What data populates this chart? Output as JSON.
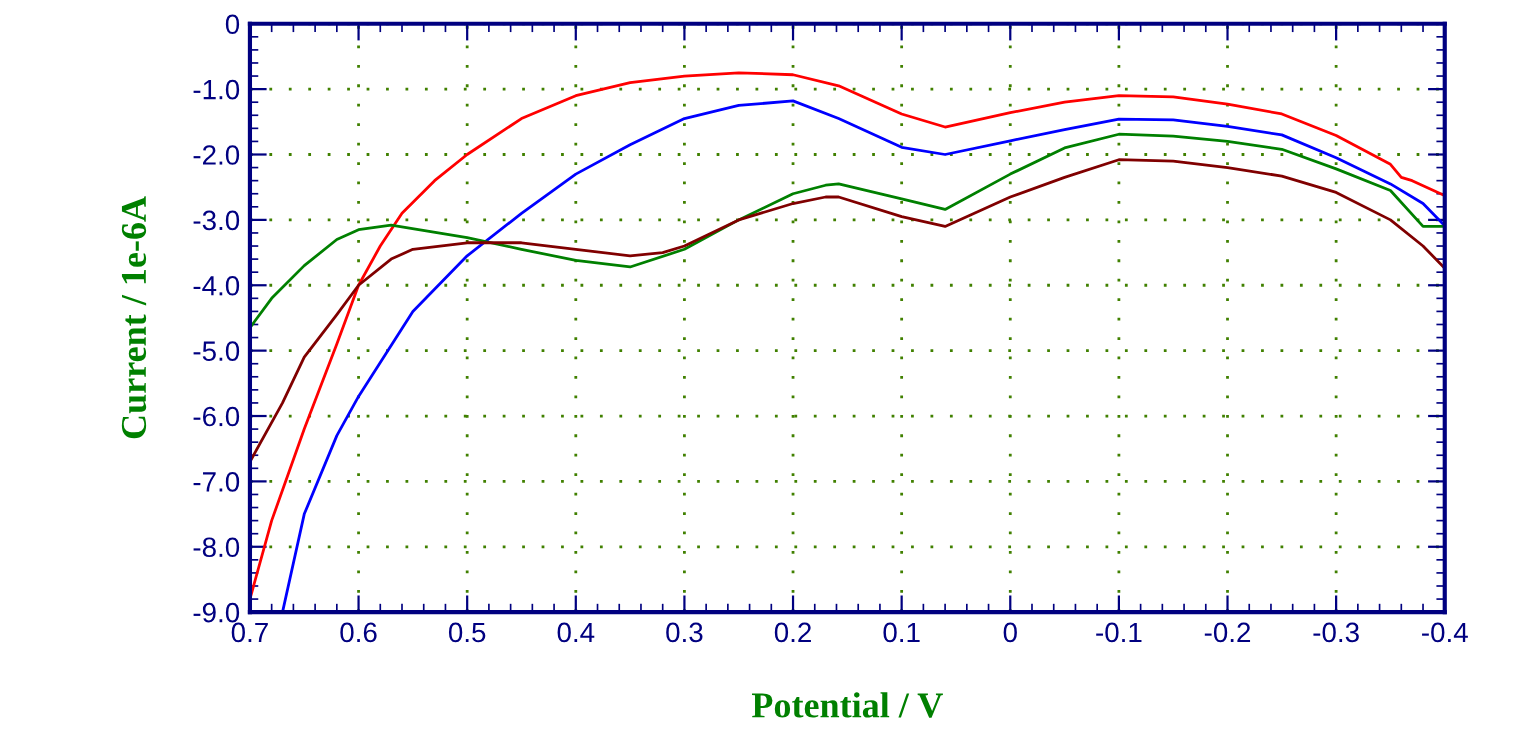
{
  "chart_data": {
    "type": "line",
    "xlabel": "Potential / V",
    "ylabel": "Current / 1e-6A",
    "xlim": [
      0.7,
      -0.4
    ],
    "xticks": [
      0.7,
      0.6,
      0.5,
      0.4,
      0.3,
      0.2,
      0.1,
      0,
      -0.1,
      -0.2,
      -0.3,
      -0.4
    ],
    "ylim": [
      -9,
      0
    ],
    "yticks": [
      0,
      {
        "value": -1,
        "label": "-1.0"
      },
      {
        "value": -2,
        "label": "-2.0"
      },
      {
        "value": -3,
        "label": "-3.0"
      },
      {
        "value": -4,
        "label": "-4.0"
      },
      {
        "value": -5,
        "label": "-5.0"
      },
      {
        "value": -6,
        "label": "-6.0"
      },
      {
        "value": -7,
        "label": "-7.0"
      },
      {
        "value": -8,
        "label": "-8.0"
      },
      {
        "value": -9,
        "label": "-9.0"
      }
    ],
    "grid": true,
    "marker": "none",
    "line_style": "solid",
    "series": [
      {
        "color": "#ff0000",
        "x": [
          0.7,
          0.68,
          0.65,
          0.62,
          0.6,
          0.58,
          0.56,
          0.53,
          0.5,
          0.45,
          0.4,
          0.35,
          0.3,
          0.25,
          0.2,
          0.158,
          0.1,
          0.06,
          0.0,
          -0.05,
          -0.1,
          -0.15,
          -0.2,
          -0.25,
          -0.3,
          -0.35,
          -0.36,
          -0.37,
          -0.4
        ],
        "values": [
          -8.8,
          -7.6,
          -6.2,
          -4.9,
          -4.0,
          -3.4,
          -2.9,
          -2.4,
          -2.0,
          -1.45,
          -1.1,
          -0.9,
          -0.8,
          -0.75,
          -0.78,
          -0.95,
          -1.38,
          -1.58,
          -1.36,
          -1.2,
          -1.1,
          -1.12,
          -1.23,
          -1.38,
          -1.71,
          -2.15,
          -2.35,
          -2.4,
          -2.63
        ]
      },
      {
        "color": "#0000ff",
        "x": [
          0.67,
          0.65,
          0.62,
          0.6,
          0.55,
          0.5,
          0.45,
          0.4,
          0.35,
          0.3,
          0.25,
          0.2,
          0.158,
          0.1,
          0.06,
          0.0,
          -0.05,
          -0.1,
          -0.15,
          -0.2,
          -0.25,
          -0.3,
          -0.35,
          -0.38,
          -0.4
        ],
        "values": [
          -9.0,
          -7.5,
          -6.3,
          -5.7,
          -4.4,
          -3.55,
          -2.9,
          -2.3,
          -1.85,
          -1.45,
          -1.25,
          -1.18,
          -1.45,
          -1.89,
          -2.0,
          -1.79,
          -1.62,
          -1.46,
          -1.47,
          -1.57,
          -1.7,
          -2.05,
          -2.45,
          -2.75,
          -3.09
        ]
      },
      {
        "color": "#008000",
        "x": [
          0.7,
          0.68,
          0.65,
          0.62,
          0.6,
          0.57,
          0.5,
          0.45,
          0.4,
          0.35,
          0.3,
          0.25,
          0.2,
          0.17,
          0.158,
          0.1,
          0.06,
          0.0,
          -0.05,
          -0.1,
          -0.15,
          -0.2,
          -0.25,
          -0.3,
          -0.35,
          -0.38,
          -0.4
        ],
        "values": [
          -4.65,
          -4.2,
          -3.7,
          -3.3,
          -3.15,
          -3.08,
          -3.27,
          -3.45,
          -3.62,
          -3.72,
          -3.45,
          -3.0,
          -2.6,
          -2.47,
          -2.45,
          -2.68,
          -2.84,
          -2.3,
          -1.9,
          -1.69,
          -1.72,
          -1.8,
          -1.92,
          -2.22,
          -2.55,
          -3.1,
          -3.1
        ]
      },
      {
        "color": "#800000",
        "x": [
          0.7,
          0.67,
          0.65,
          0.62,
          0.6,
          0.57,
          0.55,
          0.5,
          0.45,
          0.4,
          0.35,
          0.32,
          0.3,
          0.25,
          0.2,
          0.17,
          0.158,
          0.1,
          0.06,
          0.0,
          -0.05,
          -0.1,
          -0.15,
          -0.2,
          -0.25,
          -0.3,
          -0.35,
          -0.38,
          -0.4
        ],
        "values": [
          -6.7,
          -5.8,
          -5.1,
          -4.45,
          -4.0,
          -3.6,
          -3.45,
          -3.35,
          -3.35,
          -3.45,
          -3.55,
          -3.5,
          -3.4,
          -3.0,
          -2.75,
          -2.65,
          -2.65,
          -2.95,
          -3.1,
          -2.65,
          -2.35,
          -2.08,
          -2.1,
          -2.2,
          -2.33,
          -2.58,
          -3.0,
          -3.4,
          -3.74
        ]
      }
    ]
  }
}
